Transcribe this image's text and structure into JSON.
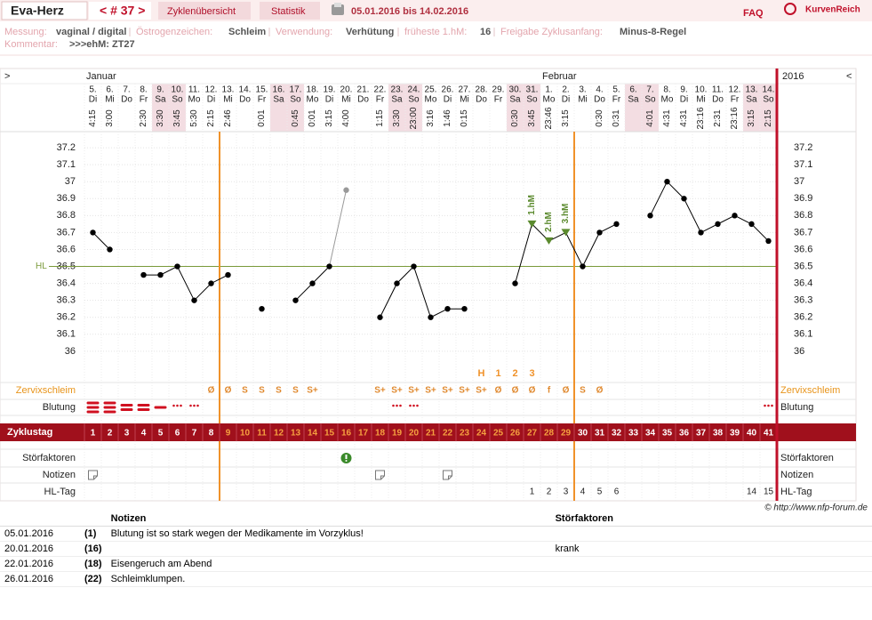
{
  "nav": {
    "site": "Eva-Herz",
    "cycle": "< # 37 >",
    "tabs": [
      "Zyklenübersicht",
      "Statistik"
    ],
    "period": "05.01.2016 bis 14.02.2016",
    "faq": "FAQ",
    "brand": "KurvenReich"
  },
  "info": {
    "fields": [
      {
        "label": "Messung:",
        "value": "vaginal / digital"
      },
      {
        "label": "Östrogenzeichen:",
        "value": "Schleim"
      },
      {
        "label": "Verwendung:",
        "value": "Verhütung"
      },
      {
        "label": "früheste 1.hM:",
        "value": "16"
      },
      {
        "label": "Freigabe Zyklusanfang:",
        "value": "Minus-8-Regel"
      }
    ],
    "comment_label": "Kommentar:",
    "comment": ">>>ehM: ZT27"
  },
  "chart_data": {
    "type": "line",
    "nav_left": ">",
    "nav_right": "<",
    "year": "2016",
    "months": [
      "Januar",
      null,
      null,
      null,
      null,
      null,
      null,
      null,
      null,
      null,
      null,
      null,
      null,
      null,
      null,
      null,
      null,
      null,
      null,
      null,
      null,
      null,
      null,
      null,
      null,
      null,
      null,
      "Februar",
      null,
      null,
      null,
      null,
      null,
      null,
      null,
      null,
      null,
      null,
      null,
      null,
      null
    ],
    "categories": [
      "5.",
      "6.",
      "7.",
      "8.",
      "9.",
      "10.",
      "11.",
      "12.",
      "13.",
      "14.",
      "15.",
      "16.",
      "17.",
      "18.",
      "19.",
      "20.",
      "21.",
      "22.",
      "23.",
      "24.",
      "25.",
      "26.",
      "27.",
      "28.",
      "29.",
      "30.",
      "31.",
      "1.",
      "2.",
      "3.",
      "4.",
      "5.",
      "6.",
      "7.",
      "8.",
      "9.",
      "10.",
      "11.",
      "12.",
      "13.",
      "14."
    ],
    "weekdays": [
      "Di",
      "Mi",
      "Do",
      "Fr",
      "Sa",
      "So",
      "Mo",
      "Di",
      "Mi",
      "Do",
      "Fr",
      "Sa",
      "So",
      "Mo",
      "Di",
      "Mi",
      "Do",
      "Fr",
      "Sa",
      "So",
      "Mo",
      "Di",
      "Mi",
      "Do",
      "Fr",
      "Sa",
      "So",
      "Mo",
      "Di",
      "Mi",
      "Do",
      "Fr",
      "Sa",
      "So",
      "Mo",
      "Di",
      "Mi",
      "Do",
      "Fr",
      "Sa",
      "So"
    ],
    "weekend": [
      "Sa",
      "So"
    ],
    "times": [
      "4:15",
      "3:00",
      null,
      "2:30",
      "3:30",
      "3:45",
      "5:30",
      "2:15",
      "2:46",
      null,
      "0:01",
      null,
      "0:45",
      "0:01",
      "3:15",
      "4:00",
      null,
      "1:15",
      "3:30",
      "23:00",
      "3:16",
      "1:46",
      "0:15",
      null,
      null,
      "0:30",
      "3:45",
      "23:46",
      "3:15",
      null,
      "0:30",
      "0:31",
      null,
      "4:01",
      "4:31",
      "4:31",
      "23:16",
      "2:31",
      "23:16",
      "3:15",
      "2:15"
    ],
    "values": [
      36.7,
      36.6,
      null,
      36.45,
      36.45,
      36.5,
      36.3,
      36.4,
      36.45,
      null,
      36.25,
      null,
      36.3,
      36.4,
      36.5,
      36.95,
      null,
      36.2,
      36.4,
      36.5,
      36.2,
      36.25,
      36.25,
      null,
      null,
      36.4,
      36.75,
      36.65,
      36.7,
      36.5,
      36.7,
      36.75,
      null,
      36.8,
      37,
      36.9,
      36.7,
      36.75,
      36.8,
      36.75,
      36.65
    ],
    "color": "#000000",
    "excluded": [
      15
    ],
    "excluded_color": "#999999",
    "hm_labels": [
      null,
      null,
      null,
      null,
      null,
      null,
      null,
      null,
      null,
      null,
      null,
      null,
      null,
      null,
      null,
      null,
      null,
      null,
      null,
      null,
      null,
      null,
      null,
      null,
      null,
      null,
      "1.hM",
      "2.hM",
      "3.hM",
      null,
      null,
      null,
      null,
      null,
      null,
      null,
      null,
      null,
      null,
      null,
      null
    ],
    "hm_color": "#5b8a2e",
    "hl": {
      "label": "HL",
      "value": 36.5,
      "color": "#7a9a3a"
    },
    "ylim": [
      35.8,
      37.3
    ],
    "yticks": [
      36,
      36.1,
      36.2,
      36.3,
      36.4,
      36.5,
      36.6,
      36.7,
      36.8,
      36.9,
      37,
      37.1,
      37.2
    ],
    "grid": true,
    "fertile_window": [
      9,
      29
    ],
    "fertile_color": "#f0922a"
  },
  "rows": {
    "labels": {
      "mucus": "Zervixschleim",
      "bleeding": "Blutung",
      "cycle_day": "Zyklustag",
      "disturbance": "Störfaktoren",
      "notes": "Notizen",
      "hl_day": "HL-Tag"
    },
    "peak": [
      null,
      null,
      null,
      null,
      null,
      null,
      null,
      null,
      null,
      null,
      null,
      null,
      null,
      null,
      null,
      null,
      null,
      null,
      null,
      null,
      null,
      null,
      null,
      "H",
      "1",
      "2",
      "3",
      null,
      null,
      null,
      null,
      null,
      null,
      null,
      null,
      null,
      null,
      null,
      null,
      null,
      null
    ],
    "mucus": [
      null,
      null,
      null,
      null,
      null,
      null,
      null,
      "Ø",
      "Ø",
      "S",
      "S",
      "S",
      "S",
      "S+",
      null,
      null,
      null,
      "S+",
      "S+",
      "S+",
      "S+",
      "S+",
      "S+",
      "S+",
      "Ø",
      "Ø",
      "Ø",
      "f",
      "Ø",
      "S",
      "Ø",
      null,
      null,
      null,
      null,
      null,
      null,
      null,
      null,
      null,
      null
    ],
    "bleeding": [
      4,
      4,
      3,
      3,
      2,
      1,
      1,
      null,
      null,
      null,
      null,
      null,
      null,
      null,
      null,
      null,
      null,
      null,
      1,
      1,
      null,
      null,
      null,
      null,
      null,
      null,
      null,
      null,
      null,
      null,
      null,
      null,
      null,
      null,
      null,
      null,
      null,
      null,
      null,
      null,
      1
    ],
    "bleeding_color": "#d01020",
    "cycle_day": [
      1,
      2,
      3,
      4,
      5,
      6,
      7,
      8,
      9,
      10,
      11,
      12,
      13,
      14,
      15,
      16,
      17,
      18,
      19,
      20,
      21,
      22,
      23,
      24,
      25,
      26,
      27,
      28,
      29,
      30,
      31,
      32,
      33,
      34,
      35,
      36,
      37,
      38,
      39,
      40,
      41
    ],
    "hl_day": [
      null,
      null,
      null,
      null,
      null,
      null,
      null,
      null,
      null,
      null,
      null,
      null,
      null,
      null,
      null,
      null,
      null,
      null,
      null,
      null,
      null,
      null,
      null,
      null,
      null,
      null,
      1,
      2,
      3,
      4,
      5,
      6,
      null,
      null,
      null,
      null,
      null,
      null,
      null,
      14,
      15
    ]
  },
  "copyright": "© http://www.nfp-forum.de",
  "table": {
    "header": [
      "Notizen",
      "Störfaktoren"
    ],
    "rows": [
      [
        "05.01.2016",
        {
          "value": 1,
          "label": "(1)"
        },
        "Blutung ist so stark wegen der Medikamente im Vorzyklus!",
        null
      ],
      [
        "20.01.2016",
        {
          "value": 16,
          "label": "(16)"
        },
        null,
        "krank"
      ],
      [
        "22.01.2016",
        {
          "value": 18,
          "label": "(18)"
        },
        "Eisengeruch am Abend",
        null
      ],
      [
        "26.01.2016",
        {
          "value": 22,
          "label": "(22)"
        },
        "Schleimklumpen.",
        null
      ]
    ]
  }
}
